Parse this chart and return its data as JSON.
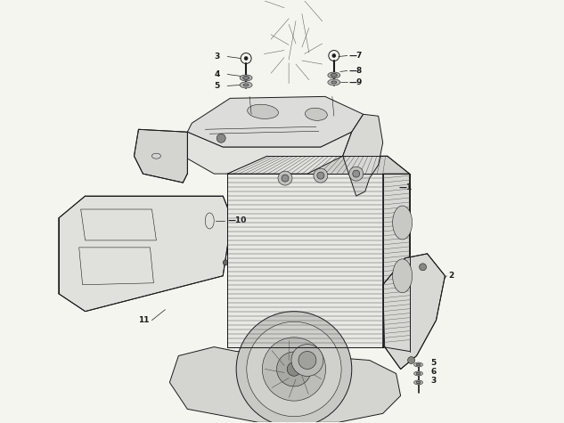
{
  "background_color": "#f5f5f0",
  "fig_width": 6.33,
  "fig_height": 4.75,
  "dpi": 100,
  "line_color": "#1a1a1a",
  "label_fontsize": 6.5,
  "lw_thin": 0.4,
  "lw_med": 0.7,
  "lw_thick": 1.0,
  "cover_color": "#e8e8e4",
  "cylinder_color": "#dcdcd8",
  "panel_color": "#e4e4e0",
  "bracket_color": "#e0e0dc",
  "crankcase_color": "#d8d8d4"
}
